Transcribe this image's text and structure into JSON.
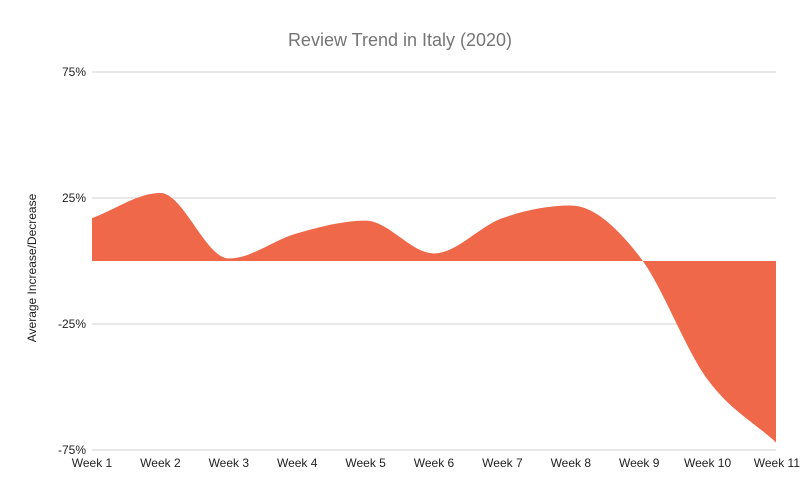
{
  "chart_data": {
    "type": "area",
    "title": "Review Trend in Italy (2020)",
    "xlabel": "",
    "ylabel": "Average Increase/Decrease",
    "categories": [
      "Week 1",
      "Week 2",
      "Week 3",
      "Week 4",
      "Week 5",
      "Week 6",
      "Week 7",
      "Week 8",
      "Week 9",
      "Week 10",
      "Week 11"
    ],
    "series": [
      {
        "values": [
          17,
          27,
          1,
          11,
          16,
          3,
          17,
          22,
          2,
          -47,
          -72
        ],
        "color": "#f0684a"
      }
    ],
    "ylim": [
      -75,
      75
    ],
    "yticks": [
      75,
      25,
      -25,
      -75
    ],
    "ytick_labels": [
      "75%",
      "25%",
      "-25%",
      "-75%"
    ],
    "grid": true,
    "legend": "none"
  }
}
